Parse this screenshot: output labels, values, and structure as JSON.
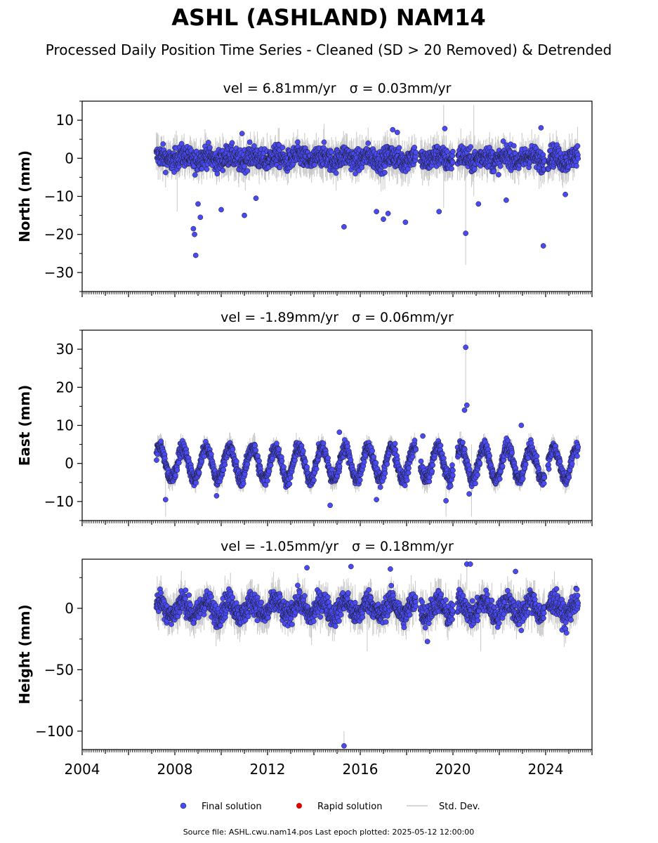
{
  "title": "ASHL (ASHLAND) NAM14",
  "subtitle": "Processed Daily Position Time Series - Cleaned (SD > 20 Removed) & Detrended",
  "legend": {
    "final": "Final solution",
    "rapid": "Rapid solution",
    "std": "Std. Dev.",
    "placement": "bottom-center"
  },
  "footer": "Source file: ASHL.cwu.nam14.pos  Last epoch plotted: 2025-05-12 12:00:00",
  "colors": {
    "final_fill": "#4a4af4",
    "final_edge": "#1a1a1a",
    "rapid": "#dd0000",
    "std_line": "#c8c8c8",
    "axis": "#000000"
  },
  "chart_data": [
    {
      "type": "scatter",
      "panel": "north",
      "title_value": "vel = 6.81mm/yr",
      "title_sigma": "σ = 0.03mm/yr",
      "ylabel": "North (mm)",
      "xlim": [
        2004,
        2026
      ],
      "ylim": [
        -35,
        15
      ],
      "yticks": [
        10,
        0,
        -10,
        -20,
        -30
      ],
      "ytick_labels": [
        "10",
        "0",
        "−10",
        "−20",
        "−30"
      ],
      "xticks": [
        2004,
        2008,
        2012,
        2016,
        2020,
        2024
      ],
      "xtick_labels": [],
      "grid": false,
      "segments": [
        [
          2007.2,
          2018.4
        ],
        [
          2018.6,
          2020.0
        ],
        [
          2020.2,
          2023.95
        ],
        [
          2024.1,
          2025.4
        ]
      ],
      "baseline_amp": 2.0,
      "seasonal_amp": 0.8,
      "outliers": [
        {
          "x": 2008.9,
          "y": -25.5
        },
        {
          "x": 2008.85,
          "y": -20.0
        },
        {
          "x": 2008.8,
          "y": -18.5
        },
        {
          "x": 2009.1,
          "y": -15.5
        },
        {
          "x": 2009.0,
          "y": -12.0
        },
        {
          "x": 2010.0,
          "y": -13.5
        },
        {
          "x": 2011.0,
          "y": -15.0
        },
        {
          "x": 2010.9,
          "y": 6.5
        },
        {
          "x": 2015.3,
          "y": -18.0
        },
        {
          "x": 2016.7,
          "y": -14.0
        },
        {
          "x": 2017.0,
          "y": -16.0
        },
        {
          "x": 2017.2,
          "y": -14.5
        },
        {
          "x": 2017.95,
          "y": -16.8
        },
        {
          "x": 2017.4,
          "y": 7.5
        },
        {
          "x": 2017.6,
          "y": 6.8
        },
        {
          "x": 2019.4,
          "y": -14.0
        },
        {
          "x": 2019.65,
          "y": 7.8
        },
        {
          "x": 2020.55,
          "y": -19.7
        },
        {
          "x": 2021.1,
          "y": -12.0
        },
        {
          "x": 2022.3,
          "y": -11.0
        },
        {
          "x": 2023.9,
          "y": -23.0
        },
        {
          "x": 2023.8,
          "y": 8.0
        },
        {
          "x": 2024.85,
          "y": -9.5
        },
        {
          "x": 2011.5,
          "y": -10.5
        }
      ],
      "std_spikes": [
        {
          "x": 2019.6,
          "lo": -13,
          "hi": 14
        },
        {
          "x": 2020.55,
          "lo": -28,
          "hi": 3
        },
        {
          "x": 2020.9,
          "lo": -10,
          "hi": 14
        },
        {
          "x": 2008.1,
          "lo": -14,
          "hi": 6
        }
      ]
    },
    {
      "type": "scatter",
      "panel": "east",
      "title_value": "vel = -1.89mm/yr",
      "title_sigma": "σ = 0.06mm/yr",
      "ylabel": "East (mm)",
      "xlim": [
        2004,
        2026
      ],
      "ylim": [
        -15,
        35
      ],
      "yticks": [
        30,
        20,
        10,
        0,
        -10
      ],
      "ytick_labels": [
        "30",
        "20",
        "10",
        "0",
        "−10"
      ],
      "xticks": [
        2004,
        2008,
        2012,
        2016,
        2020,
        2024
      ],
      "xtick_labels": [],
      "grid": false,
      "segments": [
        [
          2007.2,
          2018.4
        ],
        [
          2018.6,
          2020.0
        ],
        [
          2020.2,
          2023.95
        ],
        [
          2024.1,
          2025.4
        ]
      ],
      "baseline_amp": 1.3,
      "seasonal_amp": 4.2,
      "outliers": [
        {
          "x": 2020.55,
          "y": 30.5
        },
        {
          "x": 2020.6,
          "y": 15.3
        },
        {
          "x": 2020.5,
          "y": 14.0
        },
        {
          "x": 2007.4,
          "y": 5.8
        },
        {
          "x": 2007.6,
          "y": -9.5
        },
        {
          "x": 2009.8,
          "y": -8.5
        },
        {
          "x": 2014.7,
          "y": -11.0
        },
        {
          "x": 2015.1,
          "y": 8.2
        },
        {
          "x": 2017.5,
          "y": 5.2
        },
        {
          "x": 2018.7,
          "y": 7.2
        },
        {
          "x": 2019.7,
          "y": -9.8
        },
        {
          "x": 2020.7,
          "y": -8.0
        },
        {
          "x": 2022.95,
          "y": 10.0
        },
        {
          "x": 2016.7,
          "y": -9.5
        }
      ],
      "std_spikes": [
        {
          "x": 2020.55,
          "lo": 16,
          "hi": 35
        },
        {
          "x": 2020.8,
          "lo": -14,
          "hi": 5
        },
        {
          "x": 2019.7,
          "lo": -14,
          "hi": 2
        },
        {
          "x": 2007.6,
          "lo": -14,
          "hi": 6
        }
      ]
    },
    {
      "type": "scatter",
      "panel": "height",
      "title_value": "vel = -1.05mm/yr",
      "title_sigma": "σ = 0.18mm/yr",
      "ylabel": "Height (mm)",
      "xlim": [
        2004,
        2026
      ],
      "ylim": [
        -115,
        40
      ],
      "yticks": [
        0,
        -50,
        -100
      ],
      "ytick_labels": [
        "0",
        "−50",
        "−100"
      ],
      "xticks": [
        2004,
        2008,
        2012,
        2016,
        2020,
        2024
      ],
      "xtick_labels": [
        "2004",
        "2008",
        "2012",
        "2016",
        "2020",
        "2024"
      ],
      "grid": false,
      "segments": [
        [
          2007.2,
          2018.4
        ],
        [
          2018.6,
          2020.0
        ],
        [
          2020.2,
          2023.95
        ],
        [
          2024.1,
          2025.4
        ]
      ],
      "baseline_amp": 6.5,
      "seasonal_amp": 6.0,
      "outliers": [
        {
          "x": 2015.3,
          "y": -112
        },
        {
          "x": 2018.9,
          "y": -27
        },
        {
          "x": 2022.95,
          "y": -18
        },
        {
          "x": 2024.9,
          "y": -20
        },
        {
          "x": 2020.6,
          "y": 36
        },
        {
          "x": 2020.75,
          "y": 36
        },
        {
          "x": 2013.7,
          "y": 33
        },
        {
          "x": 2015.6,
          "y": 34
        },
        {
          "x": 2017.3,
          "y": 32
        },
        {
          "x": 2022.7,
          "y": 30
        },
        {
          "x": 2008.8,
          "y": -12
        }
      ],
      "std_spikes": [
        {
          "x": 2015.3,
          "lo": -112,
          "hi": -100
        },
        {
          "x": 2020.6,
          "lo": 15,
          "hi": 40
        },
        {
          "x": 2021.2,
          "lo": -35,
          "hi": 5
        },
        {
          "x": 2016.3,
          "lo": -35,
          "hi": -2
        },
        {
          "x": 2013.9,
          "lo": -30,
          "hi": 5
        }
      ]
    }
  ]
}
